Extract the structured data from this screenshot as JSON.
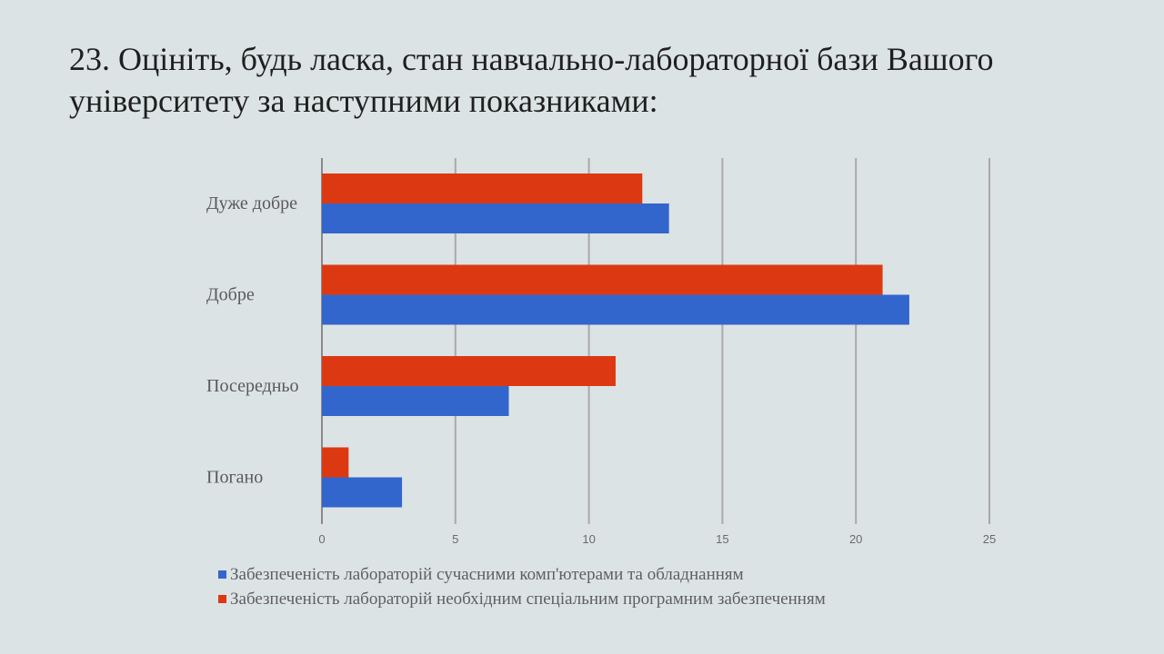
{
  "slide": {
    "title": "23.  Оцініть, будь ласка, стан навчально-лабораторної бази Вашого університету за наступними показниками:"
  },
  "chart_data": {
    "type": "bar",
    "orientation": "horizontal",
    "categories": [
      "Дуже добре",
      "Добре",
      "Посередньо",
      "Погано"
    ],
    "series": [
      {
        "name": "Забезпеченість лабораторій необхідним спеціальним програмним забезпеченням",
        "color": "#dc3912",
        "values": [
          12,
          21,
          11,
          1
        ]
      },
      {
        "name": "Забезпеченість лабораторій сучасними комп'ютерами та обладнанням",
        "color": "#3366cc",
        "values": [
          13,
          22,
          7,
          3
        ]
      }
    ],
    "xlim": [
      0,
      25
    ],
    "xticks": [
      "0",
      "5",
      "10",
      "15",
      "20",
      "25"
    ],
    "grid": true,
    "legend_position": "bottom",
    "legend": [
      {
        "label": "Забезпеченість лабораторій сучасними комп'ютерами та обладнанням",
        "color": "#3366cc"
      },
      {
        "label": "Забезпеченість лабораторій необхідним спеціальним програмним забезпеченням",
        "color": "#dc3912"
      }
    ]
  }
}
